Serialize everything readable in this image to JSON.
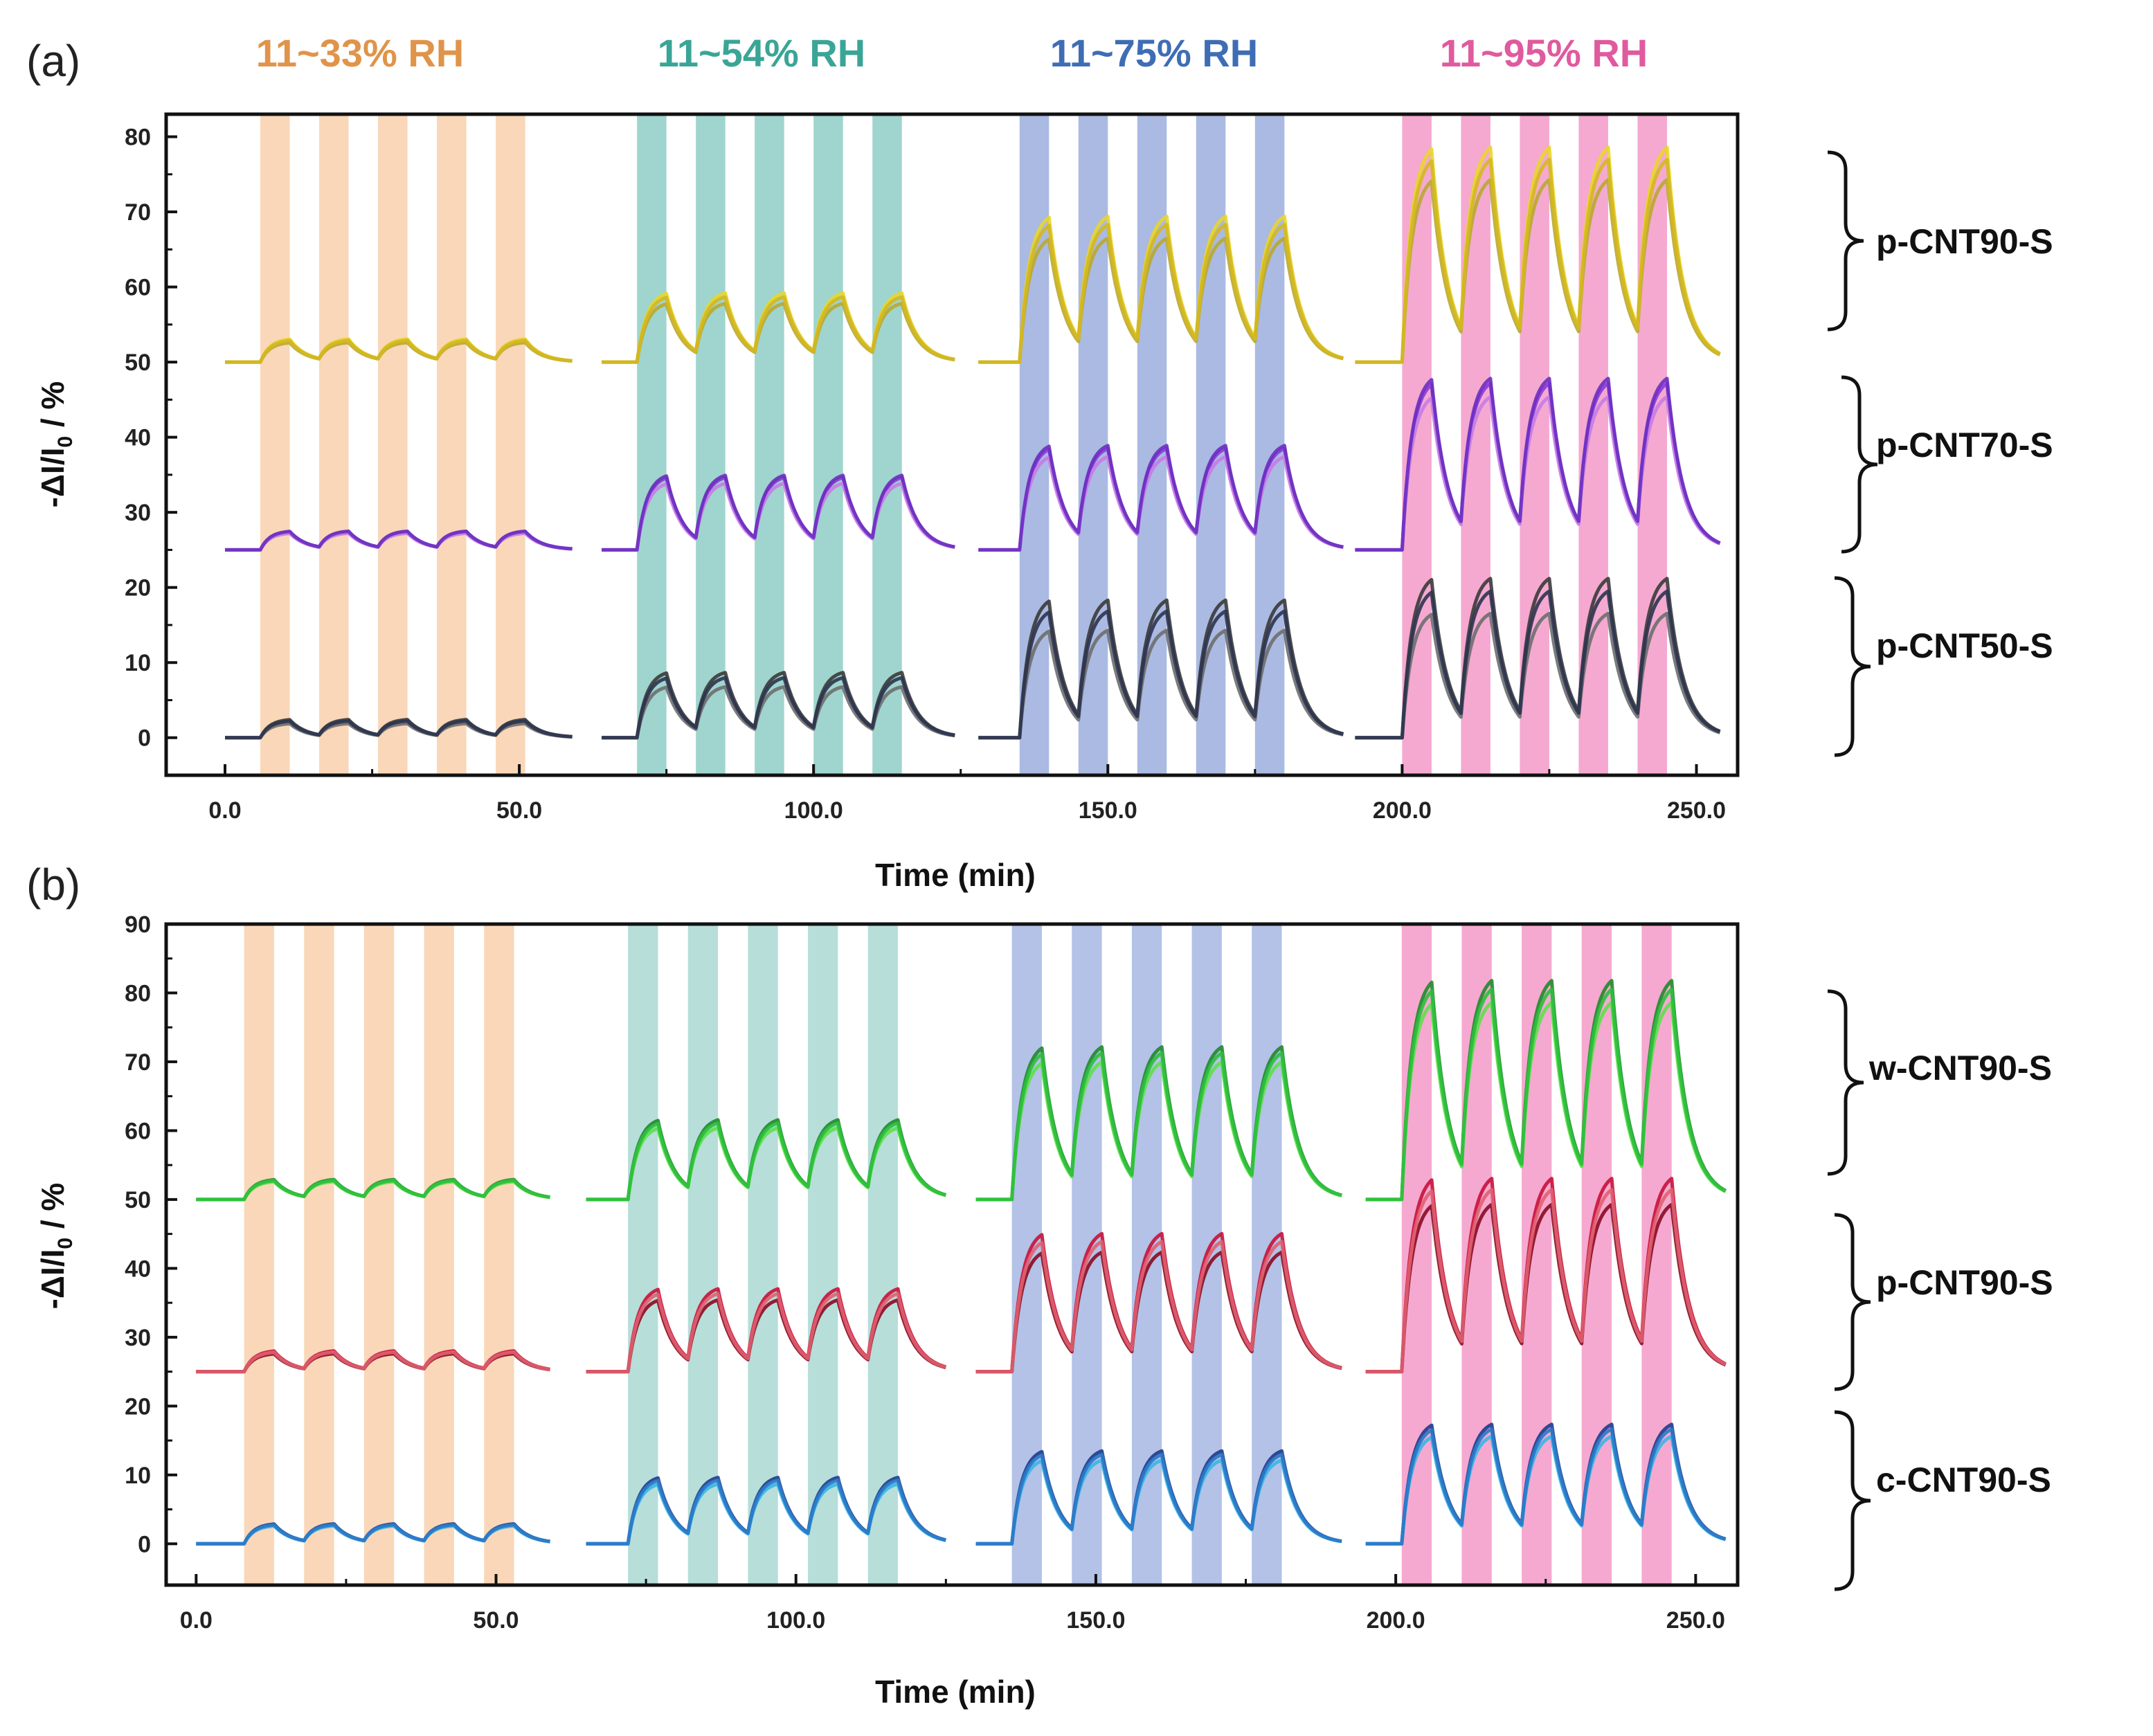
{
  "chart_data": [
    {
      "panel": "(a)",
      "type": "line",
      "xlabel": "Time (min)",
      "ylabel": "-ΔI/I",
      "ylabel_sub": "0",
      "ylabel_suffix": " / %",
      "xlim": [
        -10,
        257
      ],
      "ylim": [
        -5,
        83
      ],
      "xticks": [
        0,
        50,
        100,
        150,
        200,
        250
      ],
      "xtick_labels": [
        "0.0",
        "50.0",
        "100.0",
        "150.0",
        "200.0",
        "250.0"
      ],
      "yticks": [
        0,
        10,
        20,
        30,
        40,
        50,
        60,
        70,
        80
      ],
      "ytick_labels": [
        "0",
        "10",
        "20",
        "30",
        "40",
        "50",
        "60",
        "70",
        "80"
      ],
      "humidity_steps": [
        {
          "label": "11~33% RH",
          "color": "#e0944a",
          "band_color": "#f7caa0",
          "segment": [
            0,
            59
          ],
          "pulse_starts": [
            6,
            16,
            26,
            36,
            46
          ],
          "pulse_width": 5
        },
        {
          "label": "11~54% RH",
          "color": "#3aa596",
          "band_color": "#7fc7bd",
          "segment": [
            64,
            124
          ],
          "pulse_starts": [
            70,
            80,
            90,
            100,
            110
          ],
          "pulse_width": 5
        },
        {
          "label": "11~75% RH",
          "color": "#3f6db5",
          "band_color": "#8ea3d8",
          "segment": [
            128,
            190
          ],
          "pulse_starts": [
            135,
            145,
            155,
            165,
            175
          ],
          "pulse_width": 5
        },
        {
          "label": "11~95% RH",
          "color": "#e05a9e",
          "band_color": "#f28cc0",
          "segment": [
            192,
            254
          ],
          "pulse_starts": [
            200,
            210,
            220,
            230,
            240
          ],
          "pulse_width": 5
        }
      ],
      "groups": [
        {
          "name": "p-CNT90-S",
          "baseline": 50,
          "y_span": [
            50,
            80
          ],
          "amplitudes": [
            3,
            9,
            19,
            28
          ],
          "series": [
            {
              "color": "#e8d62a",
              "scale": 1.06
            },
            {
              "color": "#b8a832",
              "scale": 0.9
            },
            {
              "color": "#d4b820",
              "scale": 1.0
            }
          ]
        },
        {
          "name": "p-CNT70-S",
          "baseline": 25,
          "y_span": [
            25,
            48
          ],
          "amplitudes": [
            2.5,
            10,
            14,
            23
          ],
          "series": [
            {
              "color": "#8a3ad8",
              "scale": 1.0
            },
            {
              "color": "#c67be6",
              "scale": 0.92
            },
            {
              "color": "#6a2fc0",
              "scale": 1.03
            }
          ]
        },
        {
          "name": "p-CNT50-S",
          "baseline": 0,
          "y_span": [
            0,
            23
          ],
          "amplitudes": [
            2.5,
            9,
            19,
            22
          ],
          "series": [
            {
              "color": "#3a3a3a",
              "scale": 1.0
            },
            {
              "color": "#6e6e6e",
              "scale": 0.78
            },
            {
              "color": "#2c3450",
              "scale": 0.92
            }
          ]
        }
      ]
    },
    {
      "panel": "(b)",
      "type": "line",
      "xlabel": "Time (min)",
      "ylabel": "-ΔI/I",
      "ylabel_sub": "0",
      "ylabel_suffix": " / %",
      "xlim": [
        -5,
        257
      ],
      "ylim": [
        -6,
        90
      ],
      "xticks": [
        0,
        50,
        100,
        150,
        200,
        250
      ],
      "xtick_labels": [
        "0.0",
        "50.0",
        "100.0",
        "150.0",
        "200.0",
        "250.0"
      ],
      "yticks": [
        0,
        10,
        20,
        30,
        40,
        50,
        60,
        70,
        80,
        90
      ],
      "ytick_labels": [
        "0",
        "10",
        "20",
        "30",
        "40",
        "50",
        "60",
        "70",
        "80",
        "90"
      ],
      "humidity_steps": [
        {
          "color": "#e0944a",
          "band_color": "#f7caa0",
          "segment": [
            0,
            59
          ],
          "pulse_starts": [
            8,
            18,
            28,
            38,
            48
          ],
          "pulse_width": 5
        },
        {
          "color": "#3aa596",
          "band_color": "#9fd3cc",
          "segment": [
            65,
            125
          ],
          "pulse_starts": [
            72,
            82,
            92,
            102,
            112
          ],
          "pulse_width": 5
        },
        {
          "color": "#3f6db5",
          "band_color": "#9aaedd",
          "segment": [
            130,
            191
          ],
          "pulse_starts": [
            136,
            146,
            156,
            166,
            176
          ],
          "pulse_width": 5
        },
        {
          "color": "#e05a9e",
          "band_color": "#f28cc0",
          "segment": [
            195,
            255
          ],
          "pulse_starts": [
            201,
            211,
            221,
            231,
            241
          ],
          "pulse_width": 5
        }
      ],
      "groups": [
        {
          "name": "w-CNT90-S",
          "baseline": 50,
          "y_span": [
            50,
            84
          ],
          "amplitudes": [
            3,
            12,
            23,
            33
          ],
          "series": [
            {
              "color": "#1f8a2a",
              "scale": 1.0
            },
            {
              "color": "#5ee04a",
              "scale": 0.9
            },
            {
              "color": "#2bbf3c",
              "scale": 0.96
            }
          ]
        },
        {
          "name": "p-CNT90-S",
          "baseline": 25,
          "y_span": [
            25,
            55
          ],
          "amplitudes": [
            3,
            12,
            20,
            28
          ],
          "series": [
            {
              "color": "#c8113a",
              "scale": 1.04
            },
            {
              "color": "#8a0a22",
              "scale": 0.9
            },
            {
              "color": "#e06070",
              "scale": 0.98
            }
          ]
        },
        {
          "name": "c-CNT90-S",
          "baseline": 0,
          "y_span": [
            0,
            18
          ],
          "amplitudes": [
            3,
            10,
            14,
            18
          ],
          "series": [
            {
              "color": "#1e3c8c",
              "scale": 1.0
            },
            {
              "color": "#3ab6e6",
              "scale": 0.9
            },
            {
              "color": "#2a78c8",
              "scale": 0.96
            }
          ]
        }
      ]
    }
  ]
}
